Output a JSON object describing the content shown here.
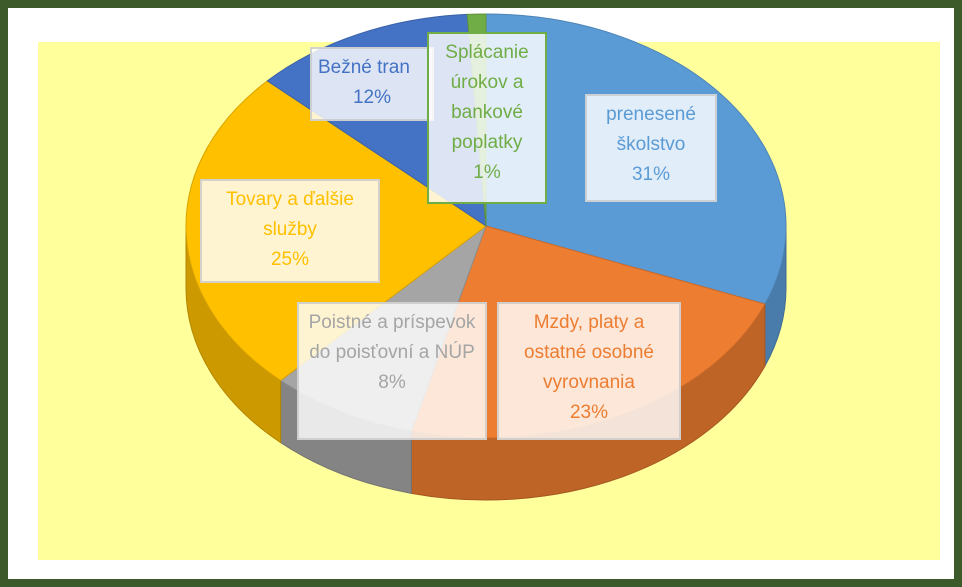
{
  "chart_data": {
    "type": "pie",
    "categories": [
      "prenesené školstvo",
      "Mzdy, platy a ostatné osobné vyrovnania",
      "Poistné a príspevok do poisťovní a NÚP",
      "Tovary a ďalšie služby",
      "Bežné tran",
      "Splácanie úrokov a bankové poplatky"
    ],
    "values": [
      31,
      23,
      8,
      25,
      12,
      1
    ],
    "value_labels": [
      "31%",
      "23%",
      "8%",
      "25%",
      "12%",
      "1%"
    ],
    "colors": [
      "#5b9bd5",
      "#ed7d31",
      "#a5a5a5",
      "#ffc000",
      "#4472c4",
      "#70ad47"
    ]
  }
}
